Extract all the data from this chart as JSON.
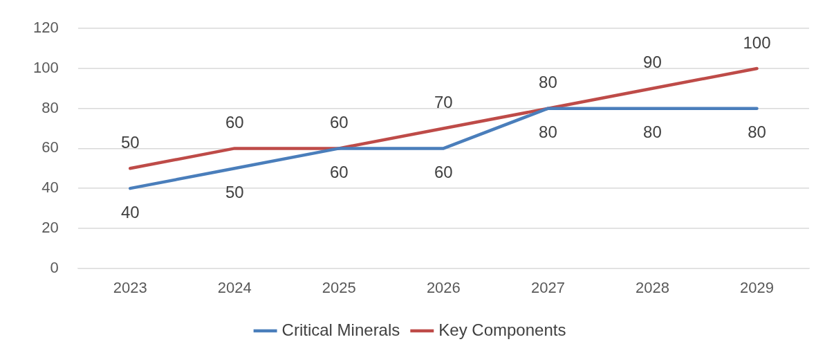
{
  "chart_data": {
    "type": "line",
    "categories": [
      "2023",
      "2024",
      "2025",
      "2026",
      "2027",
      "2028",
      "2029"
    ],
    "series": [
      {
        "name": "Critical Minerals",
        "color": "#4a7ebb",
        "values": [
          40,
          50,
          60,
          60,
          80,
          80,
          80
        ]
      },
      {
        "name": "Key Components",
        "color": "#be4b48",
        "values": [
          50,
          60,
          60,
          70,
          80,
          90,
          100
        ]
      }
    ],
    "ylim": [
      0,
      120
    ],
    "yticks": [
      0,
      20,
      40,
      60,
      80,
      100,
      120
    ],
    "grid": "y",
    "legend": "bottom",
    "data_labels": true,
    "marker": "none"
  }
}
